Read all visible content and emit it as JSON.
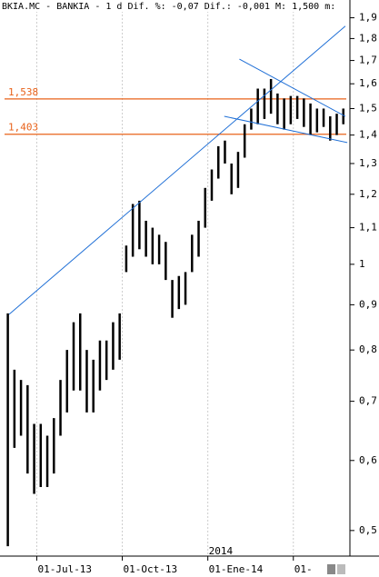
{
  "chart_data": {
    "type": "hlbar",
    "title": "BKIA.MC - BANKIA -  1 d Dif. %: -0,07 Dif.: -0,001 M: 1,500 m:",
    "year_label": "2014",
    "color": "#000000",
    "log_scale": true,
    "grid": true,
    "x": [
      0,
      1,
      2,
      3,
      4,
      5,
      6,
      7,
      8,
      9,
      10,
      11,
      12,
      13,
      14,
      15,
      16,
      17,
      18,
      19,
      20,
      21,
      22,
      23,
      24,
      25,
      26,
      27,
      28,
      29,
      30,
      31,
      32,
      33,
      34,
      35,
      36,
      37,
      38,
      39,
      40,
      41,
      42,
      43,
      44,
      45,
      46,
      47,
      48,
      49,
      50,
      51
    ],
    "low": [
      0.48,
      0.62,
      0.64,
      0.58,
      0.55,
      0.56,
      0.56,
      0.58,
      0.64,
      0.68,
      0.72,
      0.72,
      0.68,
      0.68,
      0.72,
      0.74,
      0.76,
      0.78,
      0.98,
      1.02,
      1.04,
      1.02,
      1.0,
      1.0,
      0.96,
      0.87,
      0.89,
      0.9,
      0.98,
      1.02,
      1.1,
      1.18,
      1.25,
      1.3,
      1.2,
      1.22,
      1.32,
      1.42,
      1.44,
      1.46,
      1.48,
      1.44,
      1.42,
      1.44,
      1.46,
      1.43,
      1.4,
      1.41,
      1.43,
      1.38,
      1.4,
      1.44
    ],
    "high": [
      0.88,
      0.76,
      0.74,
      0.73,
      0.66,
      0.66,
      0.64,
      0.67,
      0.74,
      0.8,
      0.86,
      0.88,
      0.8,
      0.78,
      0.82,
      0.82,
      0.86,
      0.88,
      1.05,
      1.17,
      1.18,
      1.12,
      1.1,
      1.08,
      1.06,
      0.96,
      0.97,
      0.98,
      1.08,
      1.12,
      1.22,
      1.28,
      1.36,
      1.38,
      1.3,
      1.34,
      1.44,
      1.5,
      1.58,
      1.58,
      1.62,
      1.56,
      1.54,
      1.55,
      1.55,
      1.54,
      1.52,
      1.5,
      1.5,
      1.47,
      1.48,
      1.5
    ],
    "xlim": [
      -0.5,
      52
    ],
    "xticks": [
      {
        "value": 4.4,
        "label": "01-Jul-13"
      },
      {
        "value": 17.4,
        "label": "01-Oct-13"
      },
      {
        "value": 30.4,
        "label": "01-Ene-14"
      },
      {
        "value": 43.4,
        "label": "01-"
      }
    ],
    "ylim": [
      0.47,
      1.99
    ],
    "yticks": [
      {
        "value": 0.5,
        "label": "0,5"
      },
      {
        "value": 0.6,
        "label": "0,6"
      },
      {
        "value": 0.7,
        "label": "0,7"
      },
      {
        "value": 0.8,
        "label": "0,8"
      },
      {
        "value": 0.9,
        "label": "0,9"
      },
      1,
      {
        "value": 1.1,
        "label": "1,1"
      },
      {
        "value": 1.2,
        "label": "1,2"
      },
      {
        "value": 1.3,
        "label": "1,3"
      },
      {
        "value": 1.4,
        "label": "1,4"
      },
      {
        "value": 1.5,
        "label": "1,5"
      },
      {
        "value": 1.6,
        "label": "1,6"
      },
      {
        "value": 1.7,
        "label": "1,7"
      },
      {
        "value": 1.8,
        "label": "1,8"
      },
      {
        "value": 1.9,
        "label": "1,9"
      }
    ],
    "levels": [
      {
        "value": 1.538,
        "label": "1,538",
        "color": "#e8621a"
      },
      {
        "value": 1.403,
        "label": "1,403",
        "color": "#e8621a"
      }
    ],
    "trendlines": [
      {
        "color": "#1f6fd6",
        "x": [
          0.2,
          51.3
        ],
        "y": [
          0.878,
          1.859
        ]
      },
      {
        "color": "#1f6fd6",
        "x": [
          35.2,
          51.3
        ],
        "y": [
          1.706,
          1.47
        ]
      },
      {
        "color": "#1f6fd6",
        "x": [
          32.9,
          51.6
        ],
        "y": [
          1.47,
          1.373
        ]
      }
    ]
  }
}
